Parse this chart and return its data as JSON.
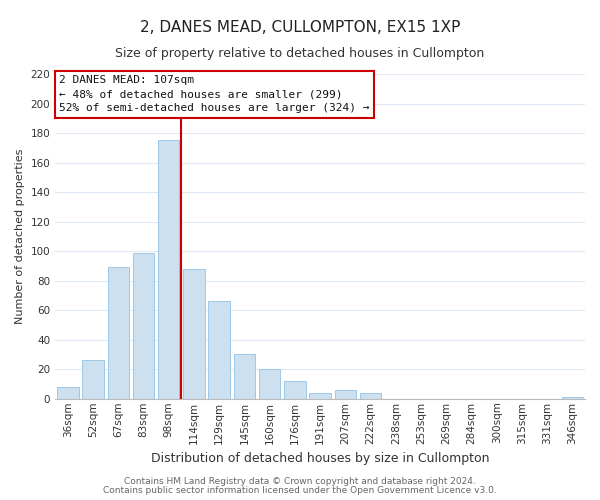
{
  "title": "2, DANES MEAD, CULLOMPTON, EX15 1XP",
  "subtitle": "Size of property relative to detached houses in Cullompton",
  "xlabel": "Distribution of detached houses by size in Cullompton",
  "ylabel": "Number of detached properties",
  "bar_color": "#cce0f0",
  "bar_edgecolor": "#9ec8e8",
  "categories": [
    "36sqm",
    "52sqm",
    "67sqm",
    "83sqm",
    "98sqm",
    "114sqm",
    "129sqm",
    "145sqm",
    "160sqm",
    "176sqm",
    "191sqm",
    "207sqm",
    "222sqm",
    "238sqm",
    "253sqm",
    "269sqm",
    "284sqm",
    "300sqm",
    "315sqm",
    "331sqm",
    "346sqm"
  ],
  "values": [
    8,
    26,
    89,
    99,
    175,
    88,
    66,
    30,
    20,
    12,
    4,
    6,
    4,
    0,
    0,
    0,
    0,
    0,
    0,
    0,
    1
  ],
  "ylim": [
    0,
    220
  ],
  "yticks": [
    0,
    20,
    40,
    60,
    80,
    100,
    120,
    140,
    160,
    180,
    200,
    220
  ],
  "vline_x": 4.5,
  "vline_color": "#cc0000",
  "annotation_title": "2 DANES MEAD: 107sqm",
  "annotation_line1": "← 48% of detached houses are smaller (299)",
  "annotation_line2": "52% of semi-detached houses are larger (324) →",
  "footer1": "Contains HM Land Registry data © Crown copyright and database right 2024.",
  "footer2": "Contains public sector information licensed under the Open Government Licence v3.0.",
  "grid_color": "#ddeaf5",
  "background_color": "#ffffff",
  "title_fontsize": 11,
  "subtitle_fontsize": 9,
  "xlabel_fontsize": 9,
  "ylabel_fontsize": 8,
  "tick_fontsize": 7.5,
  "ann_fontsize": 8,
  "footer_fontsize": 6.5
}
